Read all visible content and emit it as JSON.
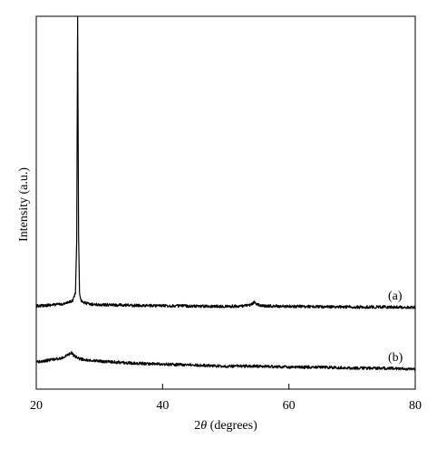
{
  "chart_data": {
    "type": "line",
    "title": "",
    "xlabel_prefix": "2",
    "xlabel_symbol": "θ",
    "xlabel_suffix": " (degrees)",
    "ylabel": "Intensity (a.u.)",
    "xlim": [
      20,
      80
    ],
    "xticks": [
      20,
      40,
      60,
      80
    ],
    "y_tick_labels": false,
    "grid": false,
    "legend": "none",
    "series": [
      {
        "name": "(a)",
        "x": [
          20,
          22,
          24,
          25,
          25.8,
          26.2,
          26.4,
          26.55,
          26.7,
          26.85,
          27.1,
          27.6,
          28.5,
          30,
          35,
          40,
          45,
          50,
          53,
          54,
          54.5,
          55,
          56,
          60,
          65,
          70,
          75,
          80
        ],
        "y": [
          100,
          103,
          106,
          110,
          118,
          140,
          300,
          1000,
          320,
          140,
          118,
          110,
          106,
          104,
          102,
          101,
          100,
          99,
          100,
          104,
          112,
          104,
          100,
          99,
          98,
          97,
          97,
          96
        ]
      },
      {
        "name": "(b)",
        "x": [
          20,
          22,
          24,
          25,
          25.5,
          26,
          27,
          28,
          30,
          35,
          40,
          45,
          50,
          55,
          60,
          65,
          70,
          75,
          80
        ],
        "y": [
          34,
          36,
          38,
          41,
          44,
          40,
          37,
          36,
          35,
          33,
          32,
          31,
          30,
          30,
          29,
          29,
          28,
          28,
          27
        ]
      }
    ]
  }
}
